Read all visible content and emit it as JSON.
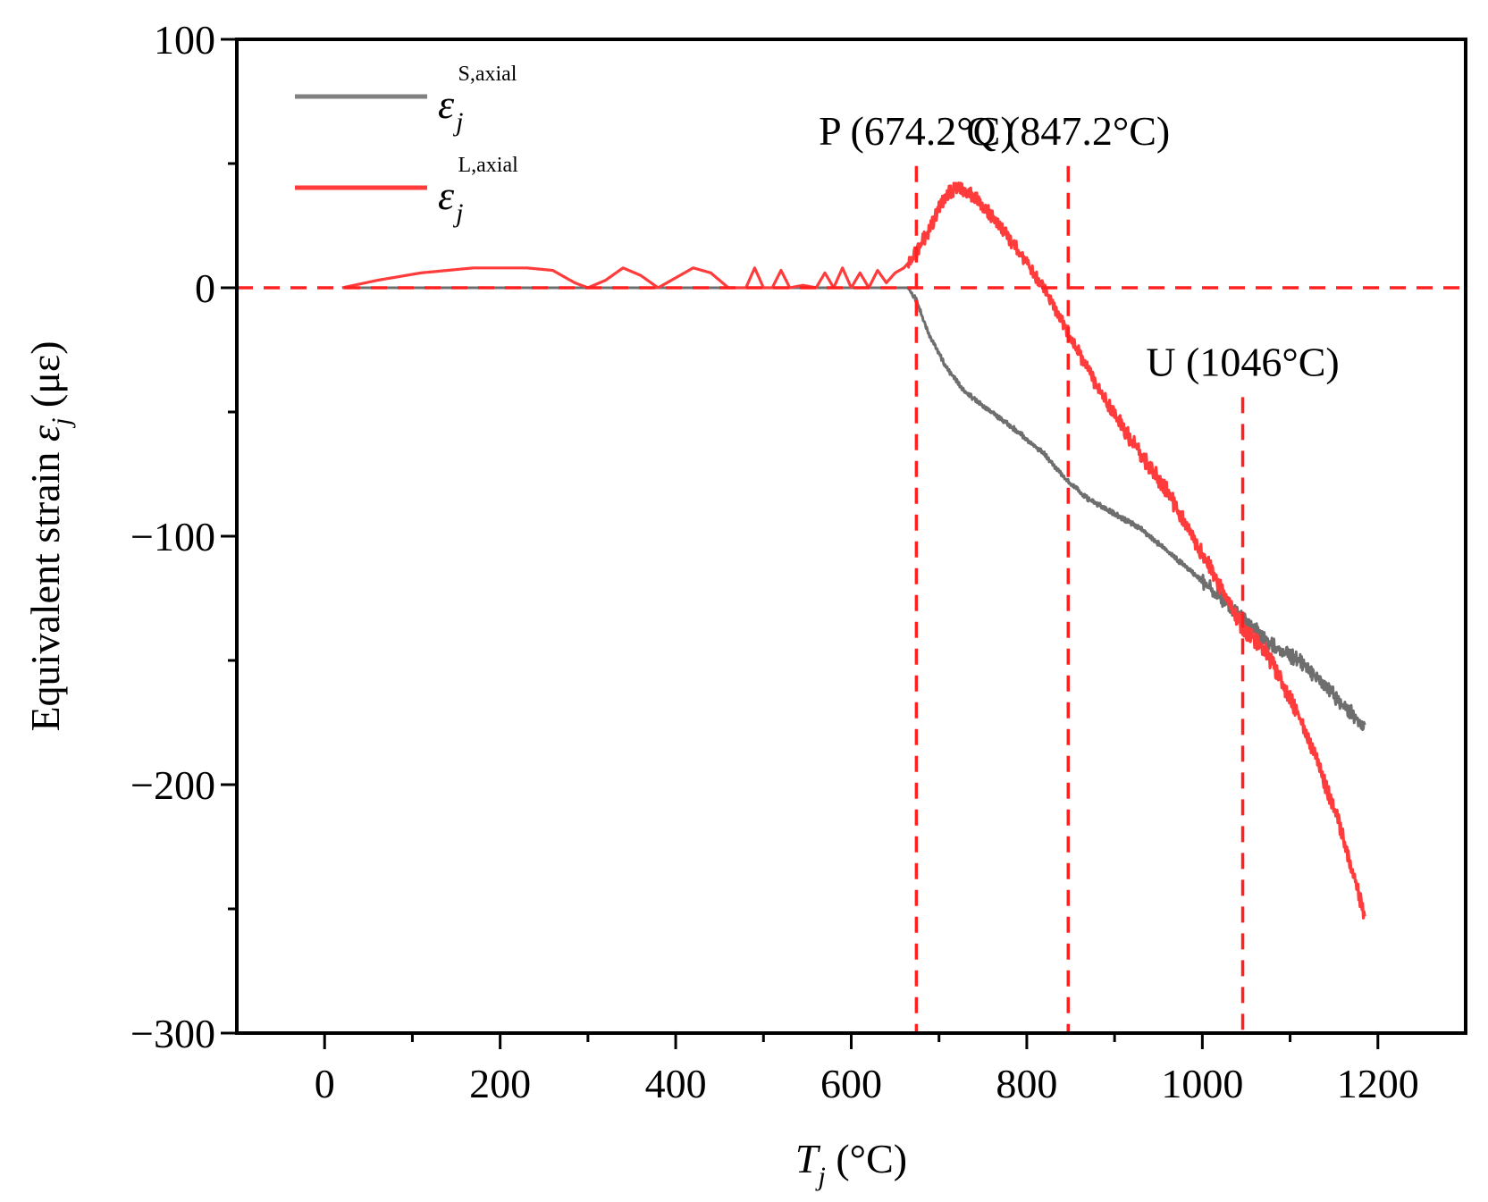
{
  "chart_data": {
    "type": "line",
    "xlabel": {
      "var": "T",
      "sub": "j",
      "unit": "(°C)"
    },
    "ylabel": {
      "text": "Equivalent strain ",
      "var": "ε",
      "sub": "j",
      "unit": " (με)"
    },
    "xlim": [
      -100,
      1300
    ],
    "ylim": [
      -300,
      100
    ],
    "xticks": [
      0,
      200,
      400,
      600,
      800,
      1000,
      1200
    ],
    "xtick_labels": [
      "0",
      "200",
      "400",
      "600",
      "800",
      "1000",
      "1200"
    ],
    "yticks": [
      100,
      0,
      -100,
      -200,
      -300
    ],
    "ytick_labels": [
      "100",
      "0",
      "−100",
      "−200",
      "−300"
    ],
    "legend": [
      {
        "symbol": "ε",
        "sub": "j",
        "sup": "S,axial",
        "color": "#808080"
      },
      {
        "symbol": "ε",
        "sub": "j",
        "sup": "L,axial",
        "color": "#ff3b3b"
      }
    ],
    "series": [
      {
        "name": "S,axial",
        "color": "#6e6e6e",
        "x": [
          20,
          100,
          200,
          300,
          400,
          500,
          600,
          650,
          665,
          674,
          690,
          710,
          730,
          760,
          790,
          820,
          847,
          870,
          900,
          930,
          960,
          1000,
          1046,
          1080,
          1110,
          1140,
          1160,
          1185
        ],
        "y": [
          0,
          0,
          0,
          0,
          0,
          0,
          0,
          0,
          0,
          -5,
          -20,
          -33,
          -42,
          -50,
          -58,
          -67,
          -78,
          -85,
          -91,
          -97,
          -106,
          -118,
          -133,
          -144,
          -150,
          -160,
          -168,
          -176
        ]
      },
      {
        "name": "L,axial",
        "color": "#ff3b3b",
        "x": [
          20,
          60,
          110,
          170,
          200,
          230,
          260,
          285,
          300,
          320,
          340,
          360,
          380,
          400,
          420,
          440,
          460,
          480,
          490,
          500,
          510,
          520,
          530,
          545,
          560,
          570,
          580,
          590,
          600,
          610,
          620,
          630,
          640,
          650,
          660,
          670,
          680,
          690,
          700,
          710,
          720,
          730,
          740,
          750,
          760,
          780,
          800,
          820,
          847,
          880,
          920,
          960,
          1000,
          1046,
          1070,
          1100,
          1120,
          1140,
          1160,
          1175,
          1185
        ],
        "y": [
          0,
          3,
          6,
          8,
          8,
          8,
          7,
          2,
          0,
          3,
          8,
          5,
          0,
          4,
          8,
          6,
          0,
          0,
          8,
          0,
          0,
          7,
          0,
          1,
          0,
          6,
          0,
          8,
          0,
          6,
          0,
          7,
          2,
          6,
          8,
          12,
          18,
          24,
          32,
          38,
          40,
          39,
          37,
          33,
          29,
          20,
          10,
          0,
          -18,
          -40,
          -62,
          -82,
          -107,
          -137,
          -145,
          -165,
          -180,
          -200,
          -220,
          -240,
          -253
        ]
      }
    ],
    "hlines": [
      {
        "y": 0,
        "color": "#ff2020",
        "style": "dashed"
      }
    ],
    "vlines": [
      {
        "x": 674.2,
        "label": "P (674.2°C)",
        "y_top": 49
      },
      {
        "x": 847.2,
        "label": "Q (847.2°C)",
        "y_top": 49
      },
      {
        "x": 1046,
        "label": "U (1046°C)",
        "y_top": -44
      }
    ]
  }
}
